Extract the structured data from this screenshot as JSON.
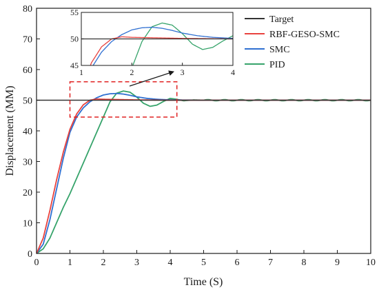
{
  "chart_data": {
    "type": "line",
    "xlabel": "Time (S)",
    "ylabel": "Displacement (MM)",
    "xlim": [
      0,
      10
    ],
    "ylim": [
      0,
      80
    ],
    "x_ticks": [
      0,
      1,
      2,
      3,
      4,
      5,
      6,
      7,
      8,
      9,
      10
    ],
    "y_ticks": [
      0,
      10,
      20,
      30,
      40,
      50,
      60,
      70,
      80
    ],
    "grid": false,
    "legend_position": "top-right",
    "series": [
      {
        "name": "Target",
        "color": "#333333",
        "x": [
          0,
          10
        ],
        "y": [
          50,
          50
        ]
      },
      {
        "name": "RBF-GESO-SMC",
        "color": "#e8413d",
        "x": [
          0,
          0.2,
          0.4,
          0.6,
          0.8,
          1.0,
          1.2,
          1.4,
          1.6,
          1.8,
          2.0,
          2.5,
          3.0,
          4.0,
          5.0,
          10.0
        ],
        "y": [
          0,
          5,
          14,
          24,
          33,
          40.5,
          45.5,
          48.5,
          50.0,
          50.4,
          50.3,
          50.2,
          50.1,
          50.0,
          50.0,
          50.0
        ]
      },
      {
        "name": "SMC",
        "color": "#2e6fd1",
        "x": [
          0,
          0.2,
          0.4,
          0.6,
          0.8,
          1.0,
          1.2,
          1.4,
          1.6,
          1.8,
          2.0,
          2.2,
          2.4,
          2.6,
          2.8,
          3.0,
          3.3,
          3.6,
          4.0,
          5.0,
          10.0
        ],
        "y": [
          0,
          3,
          11,
          21,
          31,
          39.5,
          44.5,
          47.5,
          49.5,
          50.8,
          51.7,
          52.1,
          52.2,
          52.0,
          51.6,
          51.1,
          50.6,
          50.3,
          50.1,
          50.0,
          50.0
        ]
      },
      {
        "name": "PID",
        "color": "#35a36a",
        "x": [
          0,
          0.2,
          0.4,
          0.6,
          0.8,
          1.0,
          1.2,
          1.4,
          1.6,
          1.8,
          2.0,
          2.2,
          2.4,
          2.6,
          2.8,
          3.0,
          3.2,
          3.4,
          3.6,
          3.8,
          4.0,
          4.2,
          4.4,
          4.7,
          5.0
        ],
        "y": [
          0,
          1.5,
          5,
          10,
          15,
          19.5,
          24.5,
          29.5,
          34.5,
          39.5,
          44.5,
          49.5,
          52.3,
          53.0,
          52.6,
          51.0,
          49.0,
          48.0,
          48.4,
          49.6,
          50.6,
          50.3,
          49.8,
          50.1,
          50.0
        ]
      }
    ],
    "pid_ripple": {
      "start": 4.5,
      "end": 10,
      "amplitude": 0.2,
      "period": 0.5
    },
    "zoom_region": {
      "x": [
        1,
        4.2
      ],
      "y": [
        44.5,
        56
      ]
    },
    "inset": {
      "xlim": [
        1,
        4
      ],
      "ylim": [
        45,
        55
      ],
      "x_ticks": [
        1,
        2,
        3,
        4
      ],
      "y_ticks": [
        45,
        50,
        55
      ]
    }
  }
}
